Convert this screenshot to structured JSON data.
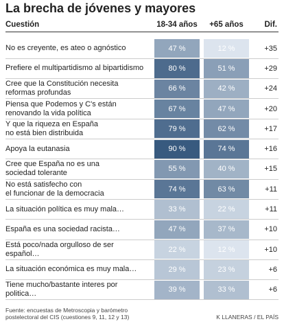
{
  "title": "La brecha de jóvenes y mayores",
  "table": {
    "header": [
      "Cuestión",
      "18-34 años",
      "+65 años",
      "Dif."
    ],
    "rows": [
      [
        "No es creyente, es ateo o agnóstico",
        "47 %",
        "12 %",
        "+35"
      ],
      [
        "Prefiere el multipartidismo al bipartidismo",
        "80 %",
        "51 %",
        "+29"
      ],
      [
        "Cree que la Constitución necesita\nreformas profundas",
        "66 %",
        "42 %",
        "+24"
      ],
      [
        "Piensa que Podemos y C's están\nrenovando la vida política",
        "67 %",
        "47 %",
        "+20"
      ],
      [
        "Y que la riqueza en España\nno está bien distribuida",
        "79 %",
        "62 %",
        "+17"
      ],
      [
        "Apoya la eutanasia",
        "90 %",
        "74 %",
        "+16"
      ],
      [
        "Cree que España no es una\nsociedad tolerante",
        "55 %",
        "40 %",
        "+15"
      ],
      [
        "No está satisfecho con\nel funcionar de la democracia",
        "74 %",
        "63 %",
        "+11"
      ],
      [
        "La situación política es muy mala…",
        "33 %",
        "22 %",
        "+11"
      ],
      [
        "España es una sociedad racista…",
        "47 %",
        "37 %",
        "+10"
      ],
      [
        "Está poco/nada orgulloso de ser español…",
        "22 %",
        "12 %",
        "+10"
      ],
      [
        "La situación económica es muy mala…",
        "29 %",
        "23 %",
        "+6"
      ],
      [
        "Tiene mucho/bastante interes por politica…",
        "39 %",
        "33 %",
        "+6"
      ]
    ]
  },
  "footer": {
    "source": "Fuente: encuestas de Metroscopia y barómetro\npostelectoral del CIS (cuestiones 9, 11, 12 y 13)",
    "credit": "K LLANERAS / EL PAÍS"
  }
}
